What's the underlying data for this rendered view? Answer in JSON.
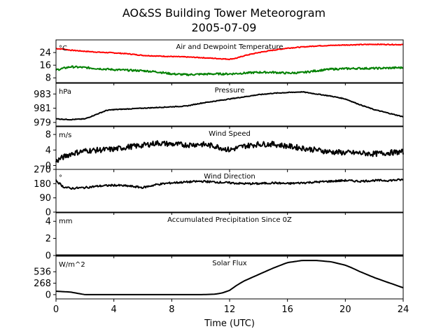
{
  "chart_data": {
    "type": "line",
    "title": "AO&SS Building Tower Meteorogram",
    "subtitle": "2005-07-09",
    "xlabel": "Time (UTC)",
    "xlim": [
      0,
      24
    ],
    "xticks": [
      0,
      4,
      8,
      12,
      16,
      20,
      24
    ],
    "panels": [
      {
        "title": "Air and Dewpoint Temperature",
        "unit": "°C",
        "ylim": [
          5,
          32
        ],
        "yticks": [
          8,
          16,
          24
        ],
        "series": [
          {
            "color": "#ff0000",
            "noise": 0.25,
            "x": [
              0,
              0.5,
              1,
              2,
              3,
              4,
              5,
              6,
              7,
              8,
              9,
              10,
              11,
              12,
              12.5,
              13,
              14,
              15,
              16,
              17,
              18,
              19,
              20,
              21,
              22,
              23,
              24
            ],
            "values": [
              26.5,
              26.2,
              25.5,
              24.8,
              24.2,
              23.8,
              23.2,
              22.2,
              21.8,
              21.5,
              21.2,
              20.8,
              20.3,
              19.8,
              20.5,
              22,
              24,
              25.5,
              26.8,
              27.5,
              28.2,
              28.5,
              28.8,
              29,
              29.2,
              29.1,
              29
            ]
          },
          {
            "color": "#008000",
            "noise": 0.6,
            "x": [
              0,
              0.5,
              1,
              2,
              3,
              4,
              5,
              6,
              7,
              8,
              9,
              10,
              11,
              12,
              13,
              14,
              15,
              16,
              17,
              18,
              19,
              20,
              21,
              22,
              23,
              24
            ],
            "values": [
              13,
              14,
              15,
              14.5,
              13.8,
              13.2,
              12.8,
              12.5,
              11.8,
              10.5,
              10,
              10.3,
              10.5,
              10.5,
              11,
              11.5,
              11.5,
              11,
              11.3,
              12.5,
              13.5,
              13.8,
              14,
              14,
              14.2,
              14.5
            ]
          }
        ]
      },
      {
        "title": "Pressure",
        "unit": "hPa",
        "ylim": [
          978.5,
          984.5
        ],
        "yticks": [
          979,
          981,
          983
        ],
        "series": [
          {
            "color": "#000000",
            "noise": 0.05,
            "x": [
              0,
              1,
              2,
              3,
              3.5,
              4,
              5,
              6,
              7,
              8,
              9,
              10,
              11,
              12,
              13,
              14,
              15,
              16,
              17,
              18,
              19,
              20,
              21,
              22,
              23,
              24
            ],
            "values": [
              979.5,
              979.4,
              979.5,
              980.3,
              980.7,
              980.8,
              980.9,
              981,
              981.1,
              981.2,
              981.3,
              981.7,
              982,
              982.3,
              982.6,
              982.9,
              983.1,
              983.2,
              983.3,
              983,
              982.7,
              982.3,
              981.5,
              980.8,
              980.3,
              979.8
            ]
          }
        ]
      },
      {
        "title": "Wind Speed",
        "unit": "m/s",
        "ylim": [
          -1,
          10
        ],
        "yticks": [
          0,
          4,
          8
        ],
        "series": [
          {
            "color": "#000000",
            "noise": 0.7,
            "x": [
              0,
              0.3,
              1,
              2,
              3,
              4,
              5,
              6,
              7,
              8,
              9,
              10,
              11,
              12,
              13,
              14,
              15,
              16,
              17,
              18,
              19,
              20,
              21,
              22,
              23,
              24
            ],
            "values": [
              1,
              1.8,
              3,
              3.8,
              4,
              4.2,
              4.8,
              5.2,
              5.8,
              5.5,
              5.3,
              5.5,
              5,
              4,
              5,
              5.5,
              5.5,
              5,
              4.5,
              4,
              3.5,
              3.3,
              3.2,
              3,
              3.3,
              3.5
            ]
          }
        ]
      },
      {
        "title": "Wind Direction",
        "unit": "°",
        "ylim": [
          0,
          270
        ],
        "yticks": [
          0,
          90,
          180,
          270
        ],
        "series": [
          {
            "color": "#000000",
            "noise": 6,
            "x": [
              0,
              0.5,
              1,
              2,
              3,
              4,
              5,
              6,
              7,
              8,
              9,
              10,
              11,
              12,
              13,
              14,
              15,
              16,
              17,
              18,
              19,
              20,
              21,
              22,
              23,
              24
            ],
            "values": [
              200,
              160,
              150,
              155,
              165,
              170,
              165,
              155,
              175,
              185,
              190,
              195,
              190,
              185,
              180,
              180,
              185,
              180,
              185,
              190,
              195,
              200,
              195,
              200,
              200,
              205
            ]
          }
        ]
      },
      {
        "title": "Accumulated Precipitation Since 0Z",
        "unit": "mm",
        "ylim": [
          0,
          5
        ],
        "yticks": [
          0,
          2,
          4
        ],
        "series": [
          {
            "color": "#000000",
            "noise": 0,
            "x": [
              0,
              24
            ],
            "values": [
              0,
              0
            ]
          }
        ]
      },
      {
        "title": "Solar Flux",
        "unit": "W/m^2",
        "ylim": [
          -100,
          900
        ],
        "yticks": [
          0,
          268,
          536
        ],
        "series": [
          {
            "color": "#000000",
            "noise": 0,
            "x": [
              0,
              1,
              1.5,
              2,
              4,
              6,
              8,
              10,
              11,
              11.5,
              12,
              12.5,
              13,
              14,
              15,
              16,
              17,
              18,
              19,
              20,
              20.5,
              21,
              22,
              23,
              24
            ],
            "values": [
              80,
              60,
              30,
              0,
              0,
              0,
              0,
              0,
              10,
              40,
              100,
              220,
              320,
              470,
              620,
              750,
              800,
              800,
              770,
              690,
              620,
              540,
              400,
              280,
              160
            ]
          }
        ]
      }
    ]
  }
}
